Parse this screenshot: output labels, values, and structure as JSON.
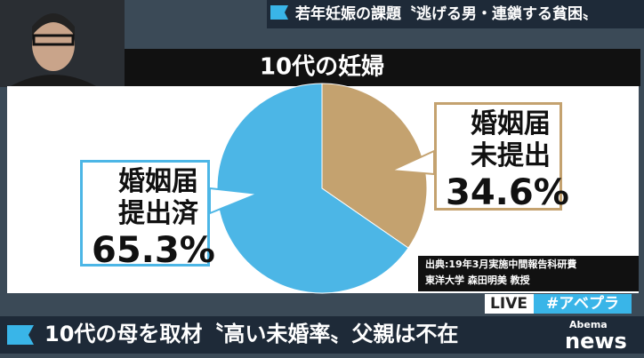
{
  "chart_data": {
    "type": "pie",
    "title": "10代の妊婦",
    "categories": [
      "婚姻届\n未提出",
      "婚姻届\n提出済"
    ],
    "values": [
      34.6,
      65.3
    ],
    "value_labels": [
      "34.6%",
      "65.3%"
    ],
    "colors": [
      "#c4a26f",
      "#4cb6e6"
    ],
    "source": [
      "出典:19年3月実施中間報告科研費",
      "東洋大学 森田明美 教授"
    ]
  },
  "overlay": {
    "top_headline": "若年妊娠の課題〝逃げる男・連鎖する貧困〟",
    "bottom_headline": "10代の母を取材〝高い未婚率〟父親は不在",
    "live": "LIVE",
    "hashtag": "#アベプラ",
    "logo_top": "Abema",
    "logo_bottom": "news"
  }
}
